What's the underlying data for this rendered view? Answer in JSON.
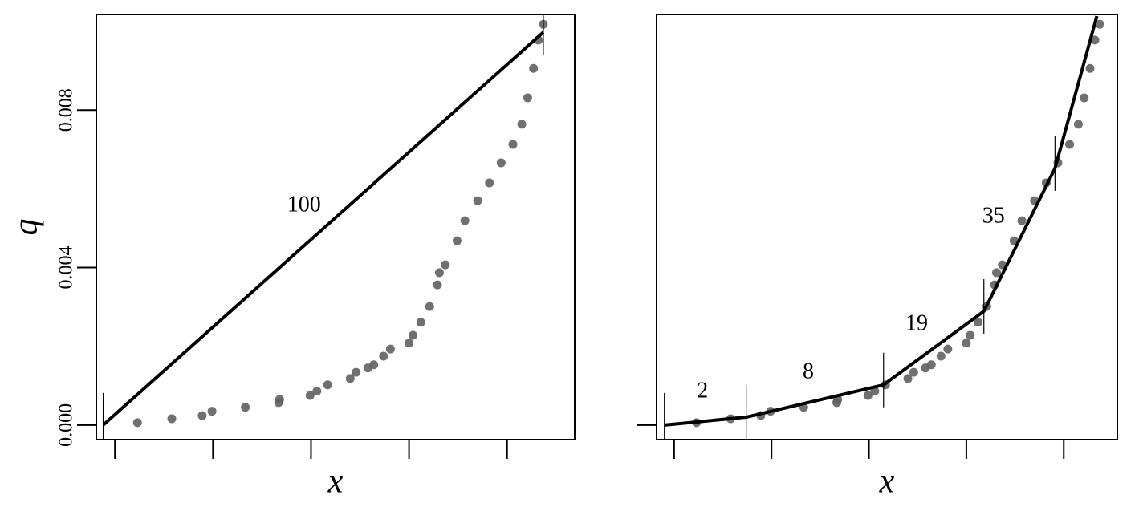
{
  "chart_data": [
    {
      "type": "scatter",
      "xlabel": "x",
      "ylabel": "q",
      "xlim": [
        -0.19,
        4.69
      ],
      "ylim": [
        -0.00037,
        0.01043
      ],
      "xticks": [
        0,
        1,
        2,
        3,
        4
      ],
      "show_xtick_labels": false,
      "yticks": [
        {
          "value": 0,
          "label": "0.000"
        },
        {
          "value": 0.004,
          "label": "0.004"
        },
        {
          "value": 0.008,
          "label": "0.008"
        }
      ],
      "show_ytick_labels": true,
      "points": {
        "color": "#606060",
        "x": [
          0.23,
          0.58,
          0.89,
          0.99,
          1.33,
          1.67,
          1.68,
          1.99,
          2.06,
          2.17,
          2.4,
          2.46,
          2.58,
          2.64,
          2.74,
          2.81,
          3.0,
          3.04,
          3.12,
          3.21,
          3.29,
          3.31,
          3.37,
          3.49,
          3.57,
          3.7,
          3.82,
          3.94,
          4.06,
          4.15,
          4.21,
          4.27,
          4.32,
          4.37
        ],
        "y": [
          6e-05,
          0.00016,
          0.00024,
          0.00035,
          0.00045,
          0.00057,
          0.00065,
          0.00075,
          0.00086,
          0.00102,
          0.00118,
          0.00134,
          0.00145,
          0.00153,
          0.00175,
          0.00193,
          0.00208,
          0.00228,
          0.00261,
          0.00301,
          0.00356,
          0.00387,
          0.00407,
          0.00468,
          0.00519,
          0.0057,
          0.00615,
          0.00666,
          0.00713,
          0.00764,
          0.00831,
          0.00906,
          0.00978,
          0.01018
        ]
      },
      "line": {
        "color": "#000000",
        "x": [
          -0.12,
          4.37
        ],
        "y": [
          0,
          0.00998
        ]
      },
      "breaks": [
        -0.12,
        4.37
      ],
      "segment_labels": [
        100
      ]
    },
    {
      "type": "scatter",
      "xlabel": "x",
      "xlim": [
        -0.18,
        4.55
      ],
      "ylim": [
        -0.00037,
        0.01043
      ],
      "xticks": [
        0,
        1,
        2,
        3,
        4
      ],
      "show_xtick_labels": false,
      "yticks": [
        0
      ],
      "show_ytick_labels": false,
      "points": {
        "color": "#606060",
        "x": [
          0.23,
          0.58,
          0.89,
          0.99,
          1.33,
          1.67,
          1.68,
          1.99,
          2.06,
          2.17,
          2.4,
          2.46,
          2.58,
          2.64,
          2.74,
          2.81,
          3.0,
          3.04,
          3.12,
          3.21,
          3.29,
          3.31,
          3.37,
          3.49,
          3.57,
          3.7,
          3.82,
          3.94,
          4.06,
          4.15,
          4.21,
          4.27,
          4.32,
          4.37
        ],
        "y": [
          6e-05,
          0.00016,
          0.00024,
          0.00035,
          0.00045,
          0.00057,
          0.00065,
          0.00075,
          0.00086,
          0.00102,
          0.00118,
          0.00134,
          0.00145,
          0.00153,
          0.00175,
          0.00193,
          0.00208,
          0.00228,
          0.00261,
          0.00301,
          0.00356,
          0.00387,
          0.00407,
          0.00468,
          0.00519,
          0.0057,
          0.00615,
          0.00666,
          0.00713,
          0.00764,
          0.00831,
          0.00906,
          0.00978,
          0.01018
        ]
      },
      "line": {
        "color": "#000000",
        "x": [
          -0.1,
          0.74,
          2.15,
          3.18,
          3.91,
          4.34
        ],
        "y": [
          0,
          0.0002,
          0.00102,
          0.00289,
          0.00652,
          0.01039
        ]
      },
      "breaks": [
        -0.1,
        0.74,
        2.15,
        3.18,
        3.91
      ],
      "segment_labels": [
        2,
        8,
        19,
        35
      ]
    }
  ]
}
